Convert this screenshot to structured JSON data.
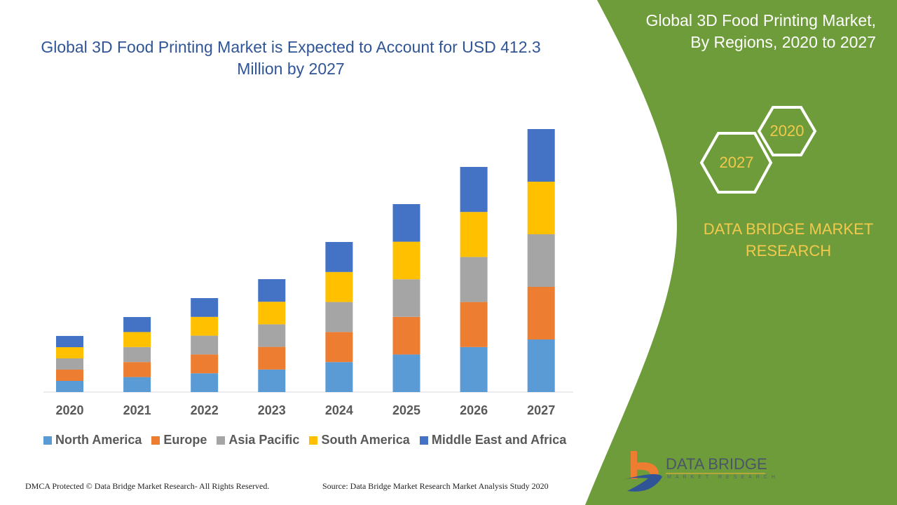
{
  "title": "Global 3D Food Printing Market is Expected to Account for USD 412.3 Million by 2027",
  "side_panel": {
    "title_line1": "Global 3D Food Printing Market,",
    "title_line2": "By Regions, 2020 to 2027",
    "hex_start": "2020",
    "hex_end": "2027",
    "brand_line1": "DATA BRIDGE MARKET",
    "brand_line2": "RESEARCH",
    "logo_text": "DATA BRIDGE",
    "logo_sub": "MARKET RESEARCH",
    "panel_color": "#6e9c3a",
    "accent_color": "#f2c94c"
  },
  "footer": {
    "left": "DMCA Protected © Data Bridge Market Research- All Rights Reserved.",
    "right": "Source: Data Bridge Market Research Market Analysis Study 2020"
  },
  "chart_data": {
    "type": "bar",
    "stacked": true,
    "title": "Global 3D Food Printing Market is Expected to Account for USD 412.3 Million by 2027",
    "categories": [
      "2020",
      "2021",
      "2022",
      "2023",
      "2024",
      "2025",
      "2026",
      "2027"
    ],
    "value_note": "relative units (no value axis shown)",
    "series": [
      {
        "name": "North America",
        "color": "#5b9bd5",
        "values": [
          16,
          21.4,
          26.8,
          32.2,
          42.8,
          53.6,
          64.2,
          75
        ]
      },
      {
        "name": "Europe",
        "color": "#ed7d31",
        "values": [
          16,
          21.4,
          26.8,
          32.2,
          42.8,
          53.6,
          64.2,
          75
        ]
      },
      {
        "name": "Asia Pacific",
        "color": "#a5a5a5",
        "values": [
          16,
          21.4,
          26.8,
          32.2,
          42.8,
          53.6,
          64.2,
          75
        ]
      },
      {
        "name": "South America",
        "color": "#ffc000",
        "values": [
          16,
          21.4,
          26.8,
          32.2,
          42.8,
          53.6,
          64.2,
          75
        ]
      },
      {
        "name": "Middle East and Africa",
        "color": "#4472c4",
        "values": [
          16,
          21.4,
          26.8,
          32.2,
          42.8,
          53.6,
          64.2,
          75
        ]
      }
    ],
    "grid": false,
    "legend": "bottom"
  }
}
